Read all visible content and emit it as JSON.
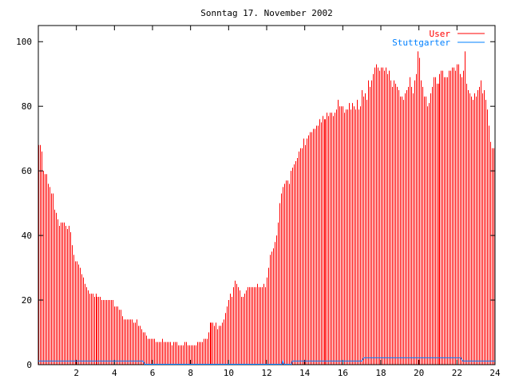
{
  "chart_data": {
    "type": "bar",
    "title": "Sonntag 17. November 2002",
    "xlabel": "",
    "ylabel": "",
    "xlim": [
      0,
      24
    ],
    "ylim": [
      0,
      105
    ],
    "xticks": [
      "2",
      "4",
      "6",
      "8",
      "10",
      "12",
      "14",
      "16",
      "18",
      "20",
      "22",
      "24"
    ],
    "yticks": [
      "0",
      "20",
      "40",
      "60",
      "80",
      "100"
    ],
    "legend_position": "top-right",
    "interval_minutes": 5,
    "series": [
      {
        "name": "User",
        "style": "impulses",
        "color": "#ff0000",
        "values": [
          68,
          68,
          66,
          60,
          59,
          59,
          56,
          55,
          53,
          53,
          48,
          47,
          45,
          43,
          44,
          44,
          44,
          43,
          42,
          43,
          41,
          37,
          34,
          32,
          32,
          31,
          30,
          28,
          27,
          25,
          24,
          23,
          22,
          22,
          22,
          21,
          22,
          21,
          21,
          21,
          20,
          20,
          20,
          20,
          20,
          20,
          20,
          20,
          18,
          18,
          18,
          17,
          17,
          15,
          14,
          14,
          14,
          14,
          14,
          14,
          13,
          13,
          14,
          12,
          12,
          11,
          10,
          10,
          9,
          8,
          8,
          8,
          8,
          8,
          7,
          7,
          7,
          7,
          8,
          7,
          7,
          7,
          7,
          7,
          6,
          7,
          7,
          7,
          6,
          6,
          6,
          6,
          7,
          7,
          6,
          6,
          6,
          6,
          6,
          6,
          7,
          7,
          7,
          7,
          8,
          8,
          8,
          10,
          13,
          13,
          13,
          12,
          13,
          11,
          12,
          12,
          13,
          14,
          16,
          18,
          20,
          22,
          21,
          24,
          26,
          25,
          24,
          23,
          21,
          21,
          22,
          23,
          24,
          24,
          24,
          24,
          24,
          24,
          25,
          24,
          24,
          24,
          25,
          24,
          27,
          30,
          34,
          35,
          36,
          38,
          40,
          44,
          50,
          53,
          55,
          56,
          57,
          57,
          56,
          60,
          61,
          62,
          63,
          64,
          66,
          67,
          67,
          70,
          68,
          70,
          71,
          72,
          72,
          73,
          73,
          74,
          74,
          76,
          75,
          77,
          76,
          76,
          78,
          77,
          78,
          78,
          77,
          78,
          79,
          82,
          80,
          80,
          80,
          78,
          79,
          79,
          81,
          79,
          81,
          80,
          79,
          82,
          79,
          80,
          85,
          83,
          84,
          82,
          88,
          86,
          88,
          90,
          92,
          93,
          92,
          91,
          92,
          92,
          91,
          92,
          90,
          91,
          88,
          86,
          88,
          87,
          86,
          85,
          83,
          83,
          82,
          84,
          85,
          86,
          89,
          86,
          84,
          88,
          90,
          97,
          95,
          88,
          86,
          83,
          83,
          80,
          81,
          84,
          86,
          89,
          89,
          87,
          87,
          90,
          91,
          91,
          89,
          89,
          89,
          91,
          91,
          92,
          92,
          91,
          93,
          93,
          90,
          89,
          91,
          97,
          87,
          85,
          84,
          83,
          82,
          84,
          83,
          85,
          86,
          88,
          84,
          85,
          82,
          79,
          74,
          69,
          67,
          67
        ]
      },
      {
        "name": "Stuttgarter",
        "style": "lines",
        "color": "#0080ff",
        "x": [
          0,
          5.5,
          5.6,
          12.8,
          12.85,
          12.9,
          13.3,
          13.35,
          17.0,
          17.1,
          22.2,
          22.3,
          24
        ],
        "y": [
          1,
          1,
          0,
          0,
          1,
          0,
          0,
          1,
          1,
          2,
          2,
          1,
          1
        ]
      }
    ]
  }
}
